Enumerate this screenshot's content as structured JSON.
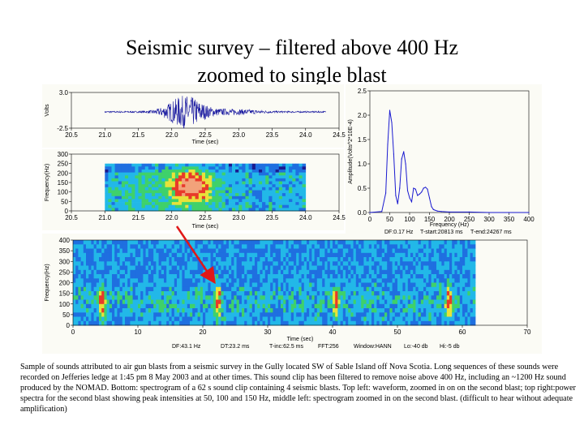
{
  "slide": {
    "title_line1": "Seismic survey – filtered above 400 Hz",
    "title_line2": "zoomed to single blast",
    "caption": "Sample of sounds attributed to air gun blasts from a seismic survey in the Gully located SW of Sable Island off Nova Scotia.  Long sequences of these sounds were recorded on Jefferies ledge at 1:45 pm 8 May 2003 and at other times.  This sound clip has been filtered to remove noise above 400 Hz, including an ~1200 Hz sound produced by the NOMAD.  Bottom: spectrogram of a 62 s sound clip containing 4 seismic blasts.  Top left: waveform, zoomed in on on the second blast; top right:power spectra for the second blast showing peak intensities at 50, 100 and 150 Hz, middle left: spectrogram zoomed in on the second blast.  (difficult to hear without adequate amplification)"
  },
  "chart_data": [
    {
      "id": "waveform",
      "type": "line",
      "xlabel": "Time (sec)",
      "ylabel": "Volts",
      "xlim": [
        20.5,
        24.5
      ],
      "ylim": [
        -2.5,
        3.0
      ],
      "x_ticks": [
        "20.5",
        "21.0",
        "21.5",
        "22.0",
        "22.5",
        "23.0",
        "23.5",
        "24.0",
        "24.5"
      ],
      "y_ticks": [
        "3.0",
        "-2.5"
      ],
      "signal_span_sec": [
        21.0,
        24.3
      ],
      "blast_center_sec": 22.2,
      "color": "#1a1aa0"
    },
    {
      "id": "zoom-spectrogram",
      "type": "heatmap",
      "xlabel": "Time (sec)",
      "ylabel": "Frequency(Hz)",
      "xlim": [
        20.5,
        24.5
      ],
      "ylim": [
        0,
        300
      ],
      "x_ticks": [
        "20.5",
        "21.0",
        "21.5",
        "22.0",
        "22.5",
        "23.0",
        "23.5",
        "24.0",
        "24.5"
      ],
      "y_ticks": [
        "300",
        "250",
        "200",
        "150",
        "100",
        "50",
        "0"
      ],
      "data_span_sec": [
        21.0,
        24.0
      ],
      "blast_center_sec": 22.3,
      "colors": [
        "#1b1b8f",
        "#1f6fe0",
        "#22b8e8",
        "#3fd16a",
        "#e8e23a",
        "#e83a2a",
        "#f2a27a"
      ]
    },
    {
      "id": "power-spectrum",
      "type": "line",
      "xlabel": "Frequency (Hz)",
      "ylabel": "Amplitude(Volts^2*10E-4)",
      "xlim": [
        0,
        400
      ],
      "ylim": [
        0,
        2.5
      ],
      "x_ticks": [
        "0",
        "50",
        "100",
        "150",
        "200",
        "250",
        "300",
        "350",
        "400"
      ],
      "y_ticks": [
        "2.5",
        "2.0",
        "1.5",
        "1.0",
        "0.5",
        "0.0"
      ],
      "x": [
        0,
        30,
        40,
        45,
        50,
        55,
        60,
        65,
        70,
        75,
        80,
        85,
        90,
        95,
        100,
        105,
        110,
        115,
        120,
        125,
        130,
        135,
        140,
        145,
        150,
        155,
        160,
        170,
        180,
        200,
        250,
        300,
        350,
        400
      ],
      "values": [
        0.0,
        0.02,
        0.4,
        1.4,
        2.1,
        1.85,
        1.2,
        0.35,
        0.18,
        0.5,
        1.1,
        1.25,
        1.0,
        0.45,
        0.3,
        0.22,
        0.5,
        0.48,
        0.35,
        0.38,
        0.42,
        0.5,
        0.52,
        0.48,
        0.3,
        0.12,
        0.06,
        0.03,
        0.02,
        0.01,
        0.01,
        0.0,
        0.0,
        0.0
      ],
      "color": "#1a1ad0",
      "footer": [
        "DF:0.17 Hz",
        "T-start:20813 ms",
        "T-end:24267 ms"
      ]
    },
    {
      "id": "full-spectrogram",
      "type": "heatmap",
      "xlabel": "Time (sec)",
      "ylabel": "Frequency(Hz)",
      "xlim": [
        0,
        70
      ],
      "ylim": [
        0,
        400
      ],
      "x_ticks": [
        "0",
        "10",
        "20",
        "30",
        "40",
        "50",
        "60",
        "70"
      ],
      "y_ticks": [
        "400",
        "350",
        "300",
        "250",
        "200",
        "150",
        "100",
        "50",
        "0"
      ],
      "data_span_sec": [
        0,
        62
      ],
      "blast_times_sec": [
        4.5,
        22.3,
        40.5,
        58.0
      ],
      "colors": [
        "#1b1b8f",
        "#1f6fe0",
        "#22b8e8",
        "#3fd16a",
        "#e8e23a",
        "#e83a2a"
      ],
      "footer": [
        "DF:43.1 Hz",
        "DT:23.2 ms",
        "T-inc:62.5 ms",
        "FFT:256",
        "Window:HANN",
        "Lo:-40 db",
        "Hi:-5 db"
      ]
    }
  ]
}
